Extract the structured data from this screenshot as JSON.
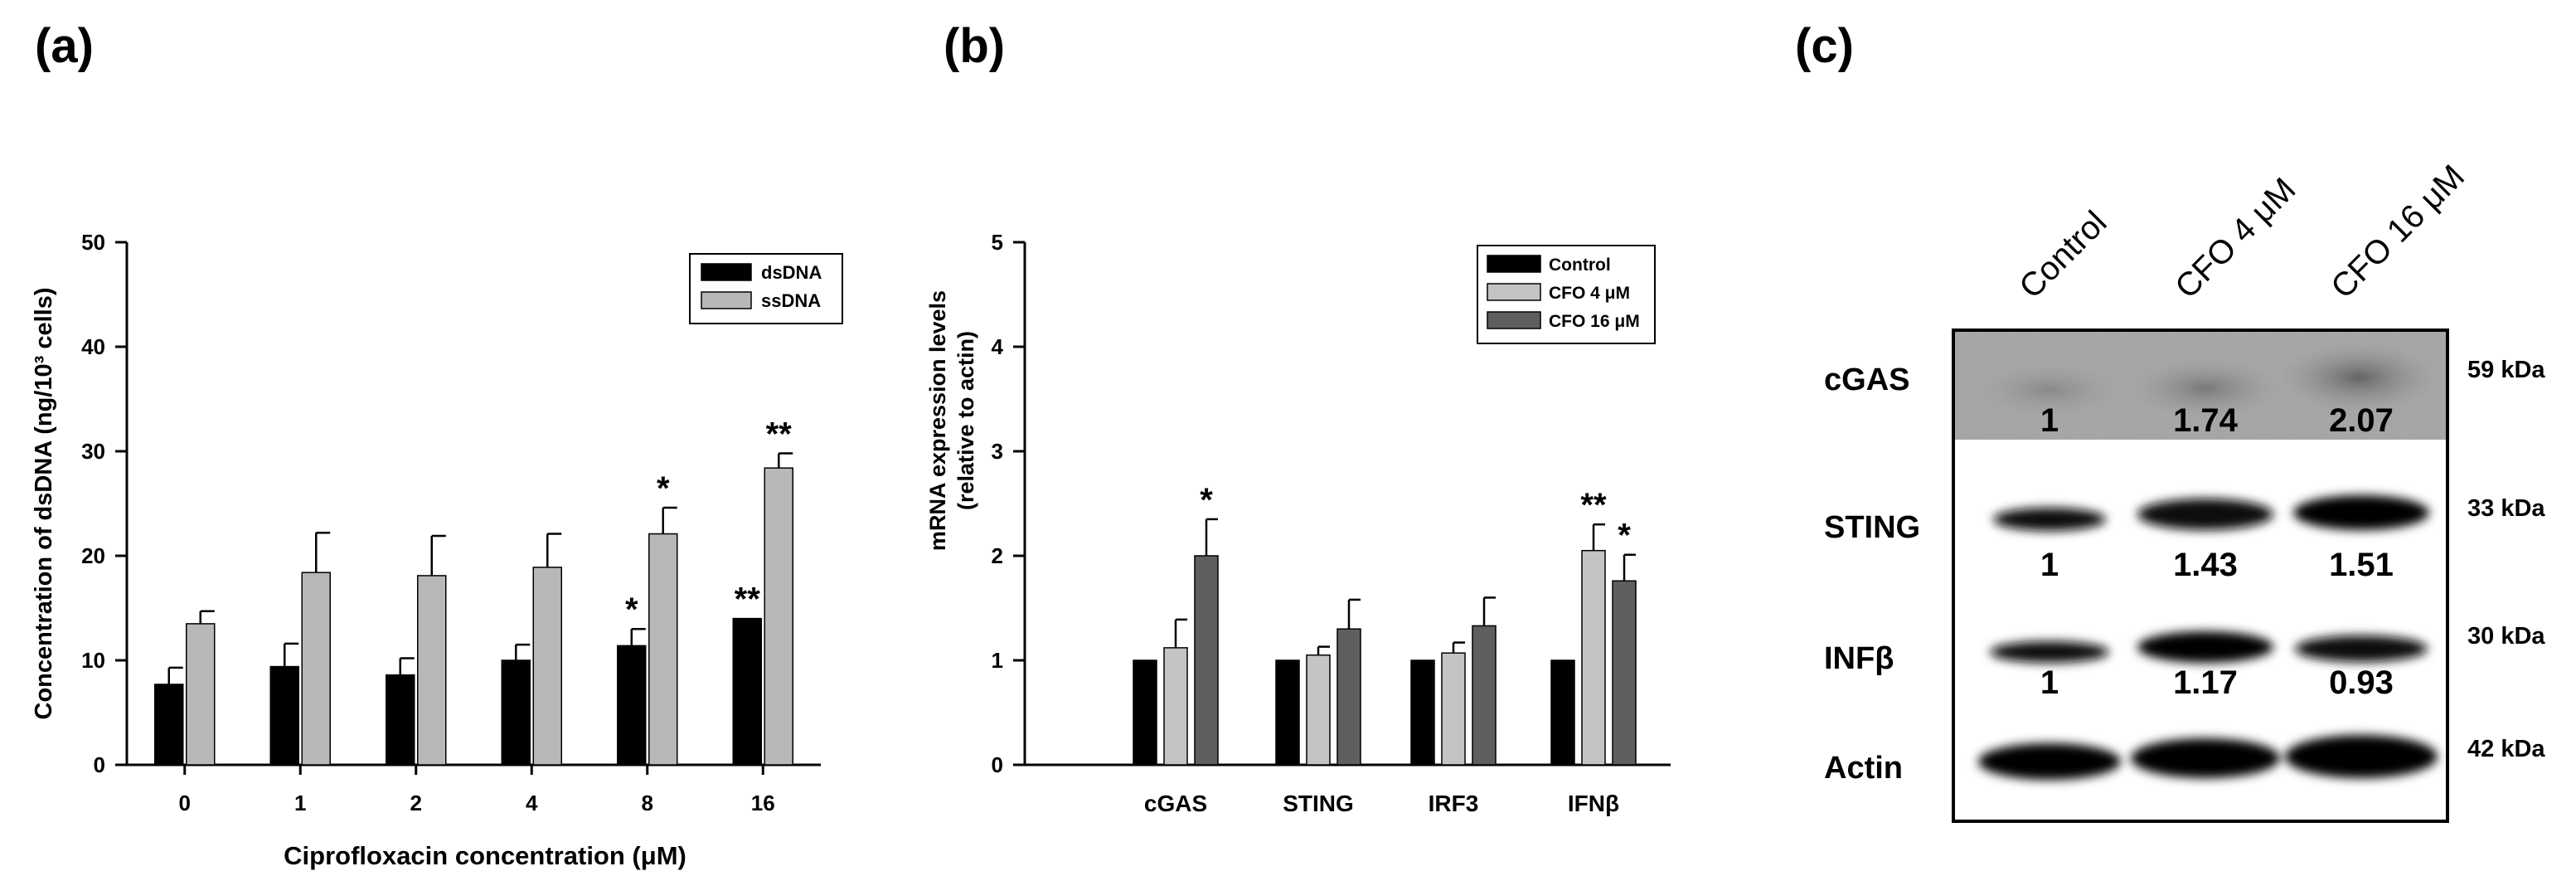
{
  "panels": {
    "a": "(a)",
    "b": "(b)",
    "c": "(c)"
  },
  "chart_data": [
    {
      "type": "bar",
      "panel": "(a)",
      "xlabel": "Ciprofloxacin concentration (μM)",
      "ylabel": "Concentration of dsDNA (ng/10³ cells)",
      "ylim": [
        0,
        50
      ],
      "yticks": [
        "0",
        "10",
        "20",
        "30",
        "40",
        "50"
      ],
      "categories": [
        "0",
        "1",
        "2",
        "4",
        "8",
        "16"
      ],
      "legend_position": "top-right",
      "series": [
        {
          "name": "dsDNA",
          "color": "#000000",
          "values": [
            7.7,
            9.4,
            8.6,
            10.0,
            11.4,
            14.0
          ],
          "errors": [
            1.6,
            2.2,
            1.6,
            1.5,
            1.6,
            0.0
          ],
          "significance": [
            "",
            "",
            "",
            "",
            "*",
            "**"
          ]
        },
        {
          "name": "ssDNA",
          "color": "#b8b8b8",
          "values": [
            13.5,
            18.4,
            18.1,
            18.9,
            22.1,
            28.4
          ],
          "errors": [
            1.2,
            3.8,
            3.8,
            3.2,
            2.5,
            1.4
          ],
          "significance": [
            "",
            "",
            "",
            "",
            "*",
            "**"
          ]
        }
      ]
    },
    {
      "type": "bar",
      "panel": "(b)",
      "xlabel": "",
      "ylabel_line1": "mRNA expression levels",
      "ylabel_line2": "(relative to actin)",
      "ylim": [
        0,
        5
      ],
      "yticks": [
        "0",
        "1",
        "2",
        "3",
        "4",
        "5"
      ],
      "categories": [
        "cGAS",
        "STING",
        "IRF3",
        "IFNβ"
      ],
      "legend_position": "top-right",
      "series": [
        {
          "name": "Control",
          "color": "#000000",
          "values": [
            1.0,
            1.0,
            1.0,
            1.0
          ],
          "errors": [
            0,
            0,
            0,
            0
          ],
          "significance": [
            "",
            "",
            "",
            ""
          ]
        },
        {
          "name": "CFO 4 μM",
          "color": "#c4c4c4",
          "values": [
            1.12,
            1.05,
            1.07,
            2.05
          ],
          "errors": [
            0.27,
            0.08,
            0.1,
            0.25
          ],
          "significance": [
            "",
            "",
            "",
            "**"
          ]
        },
        {
          "name": "CFO 16 μM",
          "color": "#5f5f5f",
          "values": [
            2.0,
            1.3,
            1.33,
            1.76
          ],
          "errors": [
            0.35,
            0.28,
            0.27,
            0.25
          ],
          "significance": [
            "*",
            "",
            "",
            "*"
          ]
        }
      ]
    }
  ],
  "western_blot": {
    "lanes": [
      "Control",
      "CFO 4 μM",
      "CFO 16 μM"
    ],
    "rows": [
      {
        "protein": "cGAS",
        "kda": "59 kDa",
        "values": [
          "1",
          "1.74",
          "2.07"
        ]
      },
      {
        "protein": "STING",
        "kda": "33 kDa",
        "values": [
          "1",
          "1.43",
          "1.51"
        ]
      },
      {
        "protein": "INFβ",
        "kda": "30 kDa",
        "values": [
          "1",
          "1.17",
          "0.93"
        ]
      },
      {
        "protein": "Actin",
        "kda": "42 kDa",
        "values": []
      }
    ]
  }
}
